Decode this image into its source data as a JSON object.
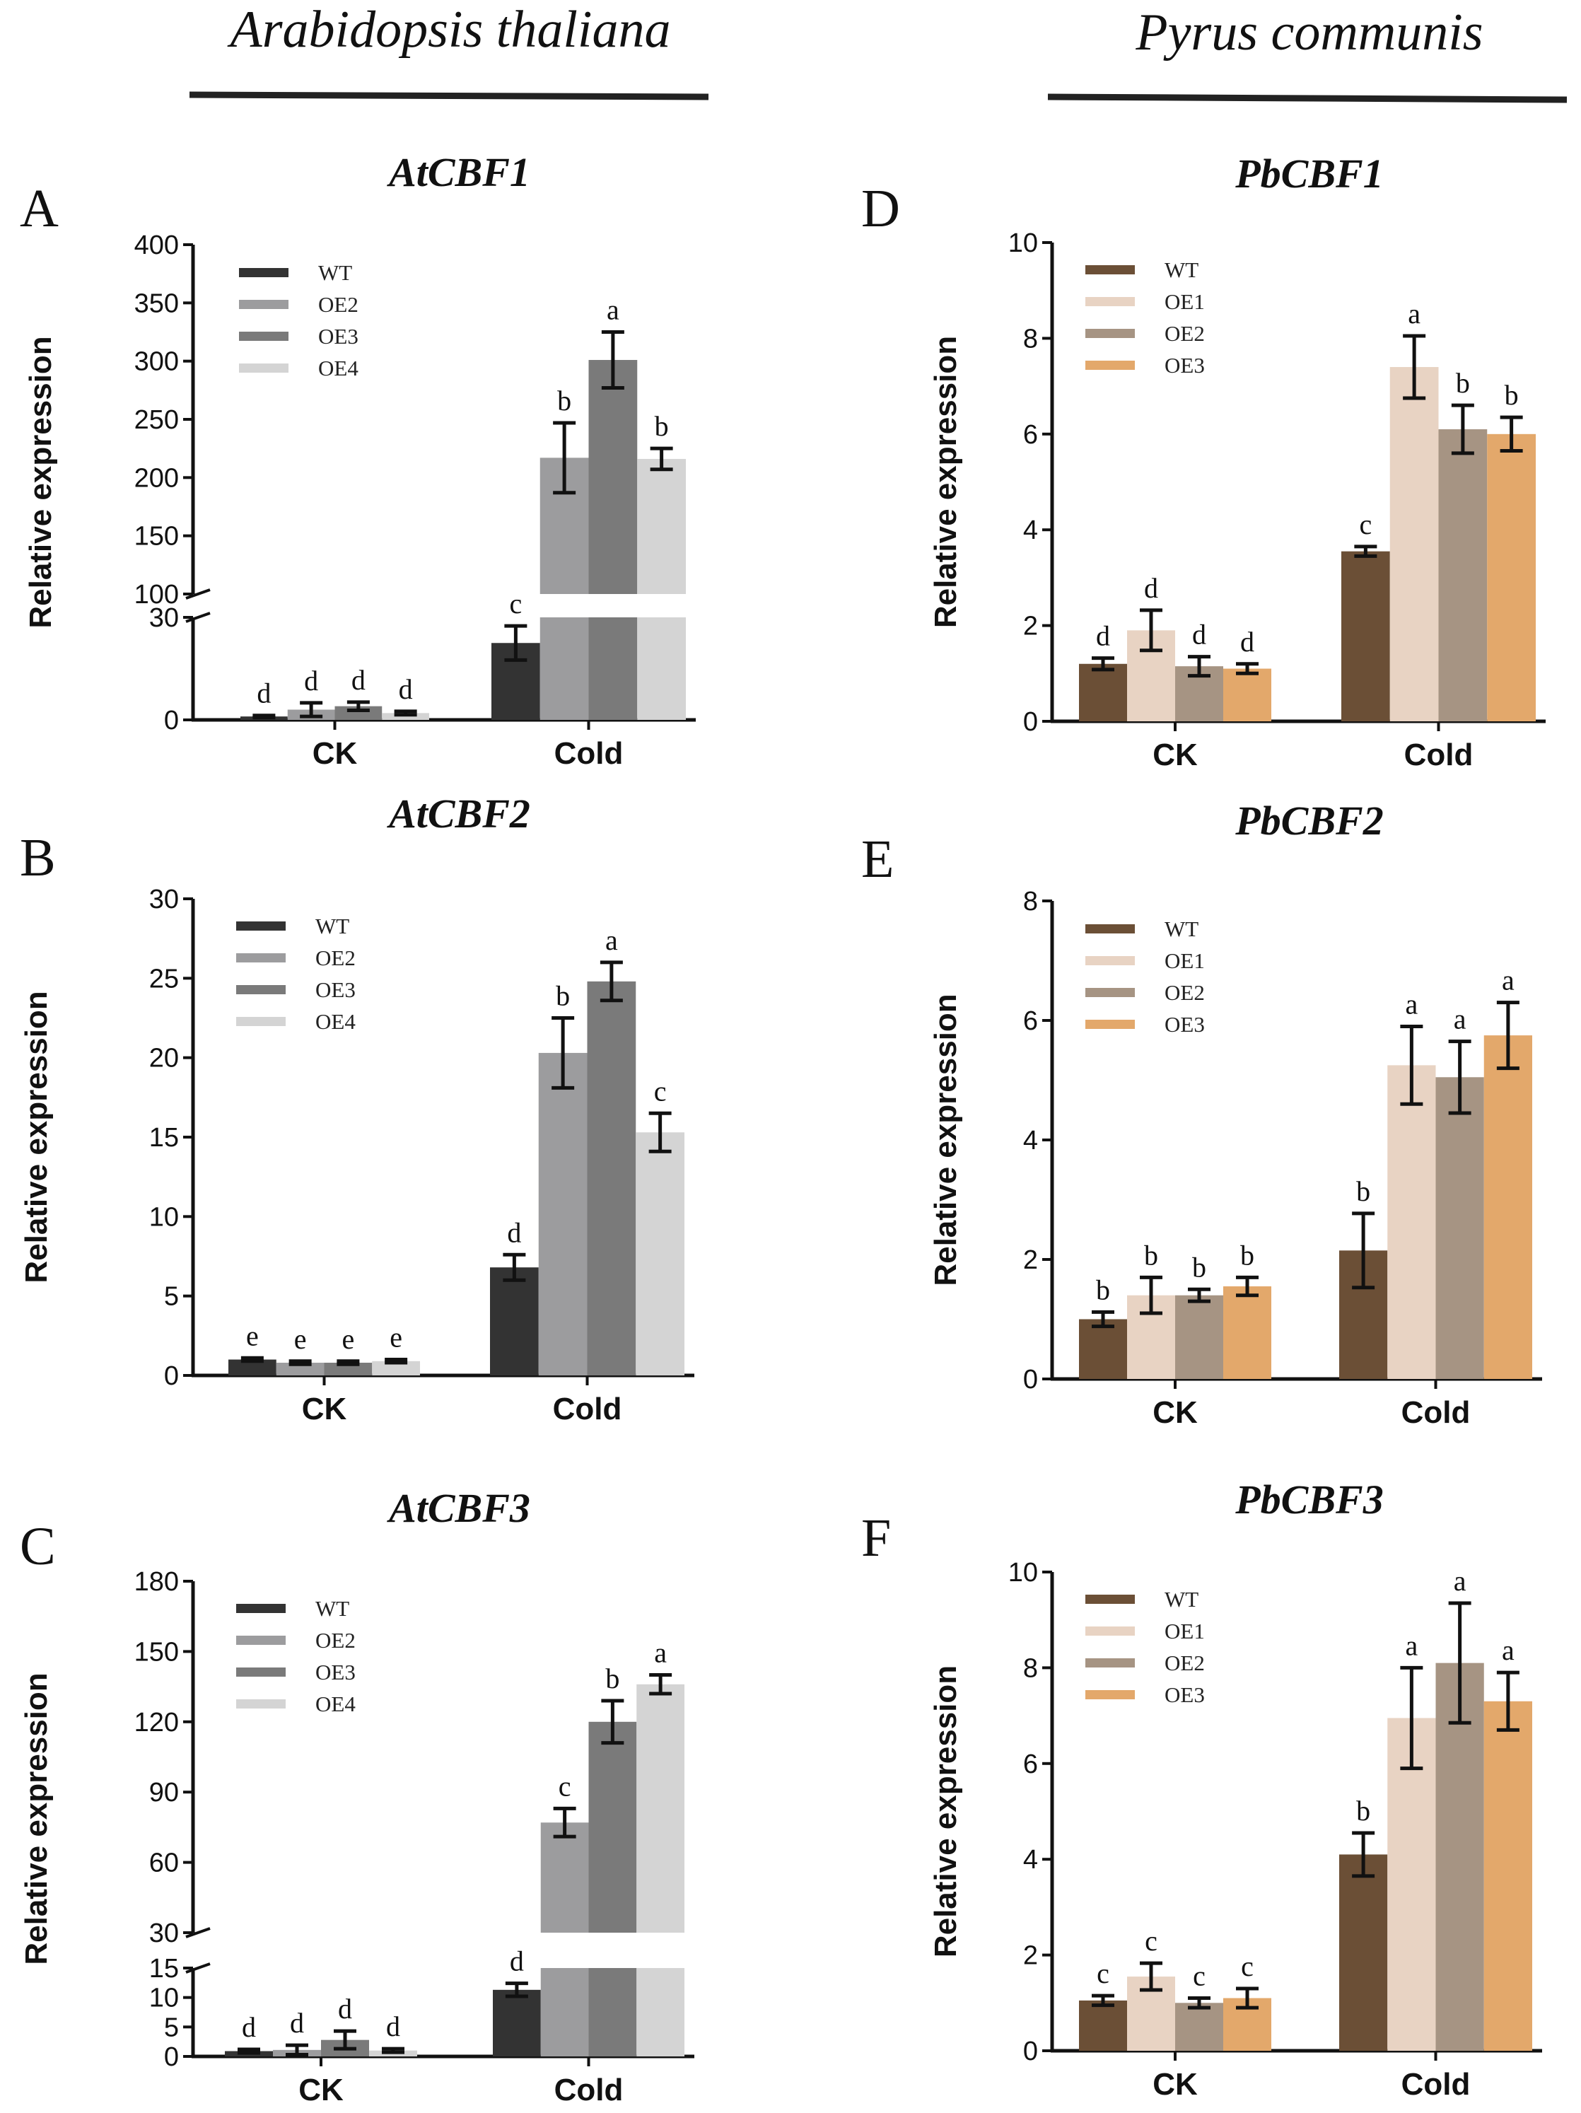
{
  "species": [
    {
      "name": "Arabidopsis thaliana"
    },
    {
      "name": "Pyrus communis"
    }
  ],
  "chart_data": [
    {
      "type": "bar",
      "panel": "A",
      "title": "AtCBF1",
      "ylabel": "Relative expression",
      "categories": [
        "CK",
        "Cold"
      ],
      "axis_break": {
        "lower": [
          0,
          30
        ],
        "upper": [
          100,
          400
        ],
        "lower_ticks": [
          0,
          30
        ],
        "upper_ticks": [
          100,
          150,
          200,
          250,
          300,
          350,
          400
        ]
      },
      "series": [
        {
          "name": "WT",
          "color": "#333333",
          "values": [
            1.0,
            22.5
          ],
          "errors": [
            0.3,
            5.0
          ],
          "labels": [
            "d",
            "c"
          ]
        },
        {
          "name": "OE2",
          "color": "#9c9c9e",
          "values": [
            3.0,
            217
          ],
          "errors": [
            2.0,
            30
          ],
          "labels": [
            "d",
            "b"
          ]
        },
        {
          "name": "OE3",
          "color": "#7a7a7a",
          "values": [
            4.0,
            301
          ],
          "errors": [
            1.2,
            24
          ],
          "labels": [
            "d",
            "a"
          ]
        },
        {
          "name": "OE4",
          "color": "#d4d4d4",
          "values": [
            2.0,
            216
          ],
          "errors": [
            0.5,
            9
          ],
          "labels": [
            "d",
            "b"
          ]
        }
      ]
    },
    {
      "type": "bar",
      "panel": "B",
      "title": "AtCBF2",
      "ylabel": "Relative expression",
      "categories": [
        "CK",
        "Cold"
      ],
      "ylim": [
        0,
        30
      ],
      "yticks": [
        0,
        5,
        10,
        15,
        20,
        25,
        30
      ],
      "series": [
        {
          "name": "WT",
          "color": "#333333",
          "values": [
            1.0,
            6.8
          ],
          "errors": [
            0.1,
            0.8
          ],
          "labels": [
            "e",
            "d"
          ]
        },
        {
          "name": "OE2",
          "color": "#9c9c9e",
          "values": [
            0.8,
            20.3
          ],
          "errors": [
            0.1,
            2.2
          ],
          "labels": [
            "e",
            "b"
          ]
        },
        {
          "name": "OE3",
          "color": "#7a7a7a",
          "values": [
            0.8,
            24.8
          ],
          "errors": [
            0.1,
            1.2
          ],
          "labels": [
            "e",
            "a"
          ]
        },
        {
          "name": "OE4",
          "color": "#d4d4d4",
          "values": [
            0.9,
            15.3
          ],
          "errors": [
            0.1,
            1.2
          ],
          "labels": [
            "e",
            "c"
          ]
        }
      ]
    },
    {
      "type": "bar",
      "panel": "C",
      "title": "AtCBF3",
      "ylabel": "Relative expression",
      "categories": [
        "CK",
        "Cold"
      ],
      "axis_break": {
        "lower": [
          0,
          15
        ],
        "upper": [
          30,
          180
        ],
        "lower_ticks": [
          0,
          5,
          10,
          15
        ],
        "upper_ticks": [
          30,
          60,
          90,
          120,
          150,
          180
        ]
      },
      "series": [
        {
          "name": "WT",
          "color": "#333333",
          "values": [
            0.9,
            11.3
          ],
          "errors": [
            0.3,
            1.1
          ],
          "labels": [
            "d",
            "d"
          ]
        },
        {
          "name": "OE2",
          "color": "#9c9c9e",
          "values": [
            1.1,
            77
          ],
          "errors": [
            0.8,
            6
          ],
          "labels": [
            "d",
            "c"
          ]
        },
        {
          "name": "OE3",
          "color": "#7a7a7a",
          "values": [
            2.8,
            120
          ],
          "errors": [
            1.5,
            9
          ],
          "labels": [
            "d",
            "b"
          ]
        },
        {
          "name": "OE4",
          "color": "#d4d4d4",
          "values": [
            1.0,
            136
          ],
          "errors": [
            0.3,
            4
          ],
          "labels": [
            "d",
            "a"
          ]
        }
      ]
    },
    {
      "type": "bar",
      "panel": "D",
      "title": "PbCBF1",
      "ylabel": "Relative expression",
      "categories": [
        "CK",
        "Cold"
      ],
      "ylim": [
        0,
        10
      ],
      "yticks": [
        0,
        2,
        4,
        6,
        8,
        10
      ],
      "series": [
        {
          "name": "WT",
          "color": "#6b4f36",
          "values": [
            1.2,
            3.55
          ],
          "errors": [
            0.12,
            0.1
          ],
          "labels": [
            "d",
            "c"
          ]
        },
        {
          "name": "OE1",
          "color": "#e8d3c3",
          "values": [
            1.9,
            7.4
          ],
          "errors": [
            0.42,
            0.65
          ],
          "labels": [
            "d",
            "a"
          ]
        },
        {
          "name": "OE2",
          "color": "#a69483",
          "values": [
            1.15,
            6.1
          ],
          "errors": [
            0.2,
            0.5
          ],
          "labels": [
            "d",
            "b"
          ]
        },
        {
          "name": "OE3",
          "color": "#e3a86b",
          "values": [
            1.1,
            6.0
          ],
          "errors": [
            0.1,
            0.35
          ],
          "labels": [
            "d",
            "b"
          ]
        }
      ]
    },
    {
      "type": "bar",
      "panel": "E",
      "title": "PbCBF2",
      "ylabel": "Relative expression",
      "categories": [
        "CK",
        "Cold"
      ],
      "ylim": [
        0,
        8
      ],
      "yticks": [
        0,
        2,
        4,
        6,
        8
      ],
      "series": [
        {
          "name": "WT",
          "color": "#6b4f36",
          "values": [
            1.0,
            2.15
          ],
          "errors": [
            0.12,
            0.62
          ],
          "labels": [
            "b",
            "b"
          ]
        },
        {
          "name": "OE1",
          "color": "#e8d3c3",
          "values": [
            1.4,
            5.25
          ],
          "errors": [
            0.3,
            0.65
          ],
          "labels": [
            "b",
            "a"
          ]
        },
        {
          "name": "OE2",
          "color": "#a69483",
          "values": [
            1.4,
            5.05
          ],
          "errors": [
            0.1,
            0.6
          ],
          "labels": [
            "b",
            "a"
          ]
        },
        {
          "name": "OE3",
          "color": "#e3a86b",
          "values": [
            1.55,
            5.75
          ],
          "errors": [
            0.15,
            0.55
          ],
          "labels": [
            "b",
            "a"
          ]
        }
      ]
    },
    {
      "type": "bar",
      "panel": "F",
      "title": "PbCBF3",
      "ylabel": "Relative expression",
      "categories": [
        "CK",
        "Cold"
      ],
      "ylim": [
        0,
        10
      ],
      "yticks": [
        0,
        2,
        4,
        6,
        8,
        10
      ],
      "series": [
        {
          "name": "WT",
          "color": "#6b4f36",
          "values": [
            1.05,
            4.1
          ],
          "errors": [
            0.1,
            0.45
          ],
          "labels": [
            "c",
            "b"
          ]
        },
        {
          "name": "OE1",
          "color": "#e8d3c3",
          "values": [
            1.55,
            6.95
          ],
          "errors": [
            0.28,
            1.05
          ],
          "labels": [
            "c",
            "a"
          ]
        },
        {
          "name": "OE2",
          "color": "#a69483",
          "values": [
            1.0,
            8.1
          ],
          "errors": [
            0.1,
            1.25
          ],
          "labels": [
            "c",
            "a"
          ]
        },
        {
          "name": "OE3",
          "color": "#e3a86b",
          "values": [
            1.1,
            7.3
          ],
          "errors": [
            0.2,
            0.6
          ],
          "labels": [
            "c",
            "a"
          ]
        }
      ]
    }
  ]
}
